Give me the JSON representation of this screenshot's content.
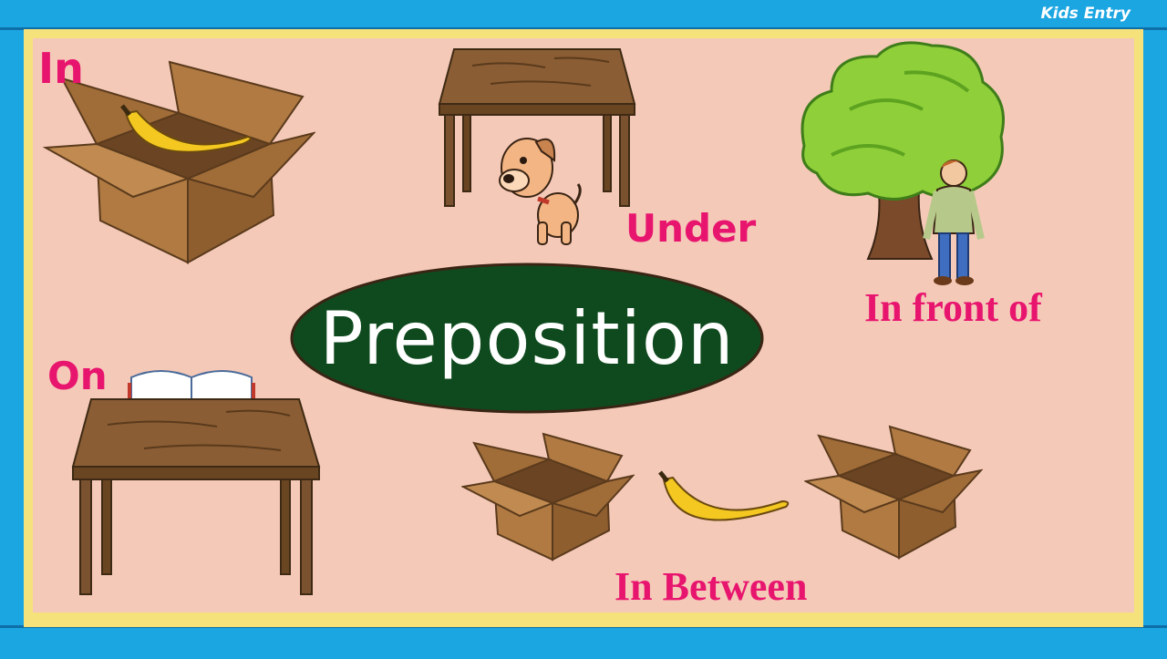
{
  "brand": "Kids Entry",
  "title": "Preposition",
  "labels": {
    "in": "In",
    "under": "Under",
    "in_front_of": "In front of",
    "on": "On",
    "in_between": "In Between"
  },
  "colors": {
    "frame": "#1ba6e2",
    "border_yellow": "#f6e27a",
    "board": "#f5c9b8",
    "label_pink": "#e8156e",
    "title_oval": "#0f4a1e",
    "wood": "#7a5230",
    "box": "#a8733f"
  },
  "icons": [
    "box-icon",
    "banana-icon",
    "table-icon",
    "dog-icon",
    "tree-icon",
    "boy-icon",
    "book-icon"
  ]
}
